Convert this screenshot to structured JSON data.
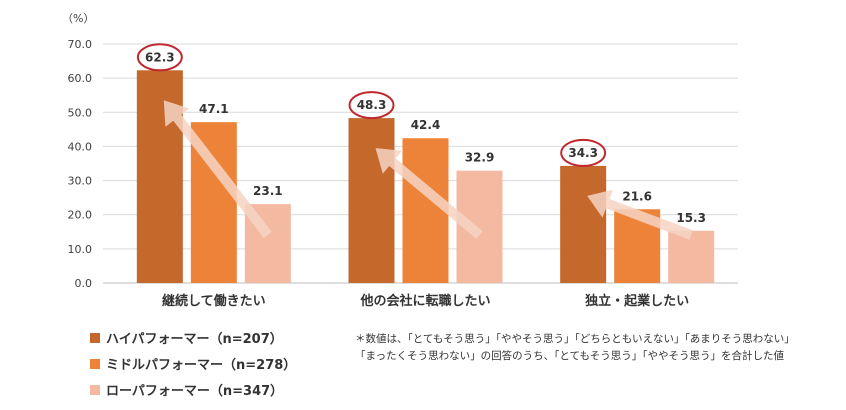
{
  "chart_data": {
    "type": "bar",
    "unit_label": "（%）",
    "categories": [
      "継続して働きたい",
      "他の会社に転職したい",
      "独立・起業したい"
    ],
    "series": [
      {
        "name": "ハイパフォーマー（n=207）",
        "color": "#c4682c",
        "values": [
          62.3,
          48.3,
          34.3
        ]
      },
      {
        "name": "ミドルパフォーマー（n=278）",
        "color": "#ed8338",
        "values": [
          47.1,
          42.4,
          21.6
        ]
      },
      {
        "name": "ローパフォーマー（n=347）",
        "color": "#f4b9a1",
        "values": [
          23.1,
          32.9,
          15.3
        ]
      }
    ],
    "ylim": [
      0,
      70
    ],
    "yticks": [
      "0.0",
      "10.0",
      "20.0",
      "30.0",
      "40.0",
      "50.0",
      "60.0",
      "70.0"
    ],
    "grid": true,
    "highlight_series": 0,
    "highlight_color": "#c0272d",
    "arrow_color": "#f6d3c3",
    "legend_position": "bottom-left",
    "note_lines": [
      "＊数値は、「とてもそう思う」「ややそう思う」「どちらともいえない」「あまりそう思わない」",
      "「まったくそう思わない」の回答のうち、「とてもそう思う」「ややそう思う」を合計した値"
    ]
  }
}
